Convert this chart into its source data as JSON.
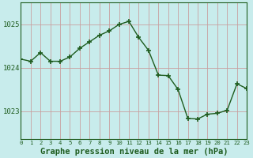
{
  "x": [
    0,
    1,
    2,
    3,
    4,
    5,
    6,
    7,
    8,
    9,
    10,
    11,
    12,
    13,
    14,
    15,
    16,
    17,
    18,
    19,
    20,
    21,
    22,
    23
  ],
  "y": [
    1024.2,
    1024.15,
    1024.35,
    1024.15,
    1024.15,
    1024.25,
    1024.45,
    1024.6,
    1024.75,
    1024.85,
    1025.0,
    1025.07,
    1024.7,
    1024.4,
    1023.83,
    1023.82,
    1023.5,
    1022.83,
    1022.82,
    1022.93,
    1022.95,
    1023.02,
    1023.63,
    1023.52
  ],
  "line_color": "#1e5c1e",
  "marker": "+",
  "marker_size": 5,
  "marker_lw": 1.2,
  "line_width": 1.0,
  "bg_color": "#c8ecec",
  "grid_color": "#c8a0a0",
  "xlabel": "Graphe pression niveau de la mer (hPa)",
  "xlabel_fontsize": 7.5,
  "xlabel_color": "#1e5c1e",
  "yticks": [
    1023,
    1024,
    1025
  ],
  "ylim": [
    1022.35,
    1025.5
  ],
  "xlim": [
    0,
    23
  ],
  "xticks": [
    0,
    1,
    2,
    3,
    4,
    5,
    6,
    7,
    8,
    9,
    10,
    11,
    12,
    13,
    14,
    15,
    16,
    17,
    18,
    19,
    20,
    21,
    22,
    23
  ],
  "xtick_fontsize": 5.2,
  "ytick_fontsize": 6.5,
  "tick_color": "#1e5c1e",
  "spine_color": "#1e5c1e"
}
